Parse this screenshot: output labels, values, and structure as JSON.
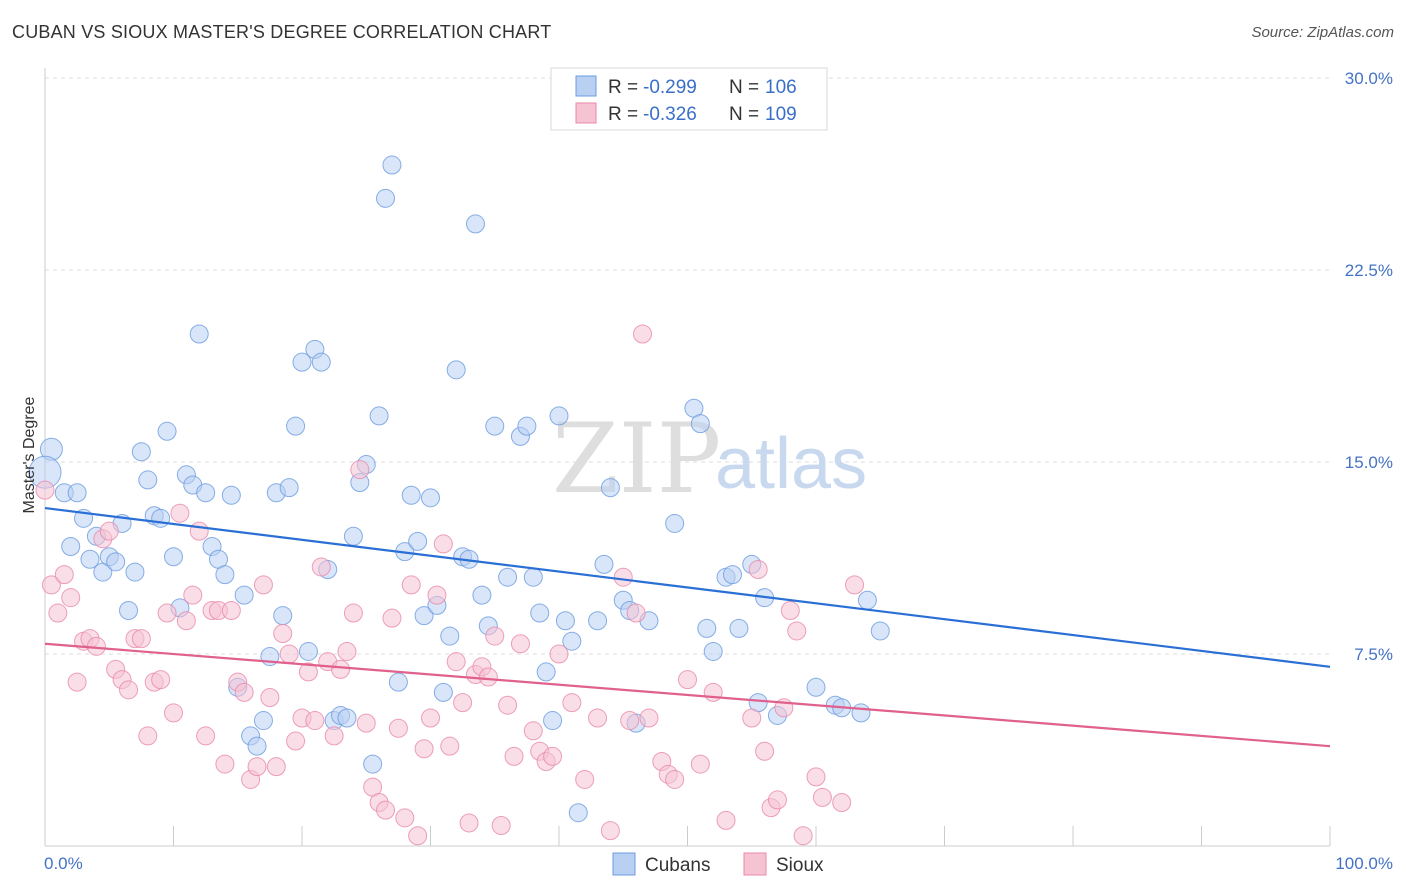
{
  "header": {
    "title": "CUBAN VS SIOUX MASTER'S DEGREE CORRELATION CHART",
    "source": "Source: ZipAtlas.com"
  },
  "watermark": {
    "zip": "ZIP",
    "atlas": "atlas"
  },
  "legend": {
    "rows": [
      {
        "r_label": "R = ",
        "r_value": "-0.299",
        "n_label": "N = ",
        "n_value": "106",
        "color": "#6a9be0",
        "fill": "#b9d0f2"
      },
      {
        "r_label": "R = ",
        "r_value": "-0.326",
        "n_label": "N = ",
        "n_value": "109",
        "color": "#e888aa",
        "fill": "#f6c3d3"
      }
    ]
  },
  "bottom_legend": [
    {
      "label": "Cubans",
      "color": "#6a9be0",
      "fill": "#b9d0f2"
    },
    {
      "label": "Sioux",
      "color": "#e888aa",
      "fill": "#f6c3d3"
    }
  ],
  "chart_data": {
    "type": "scatter",
    "title": "CUBAN VS SIOUX MASTER'S DEGREE CORRELATION CHART",
    "xlabel": "",
    "ylabel": "Master's Degree",
    "xlim": [
      0,
      100
    ],
    "ylim": [
      0,
      30
    ],
    "x_tick_labels": [
      "0.0%",
      "100.0%"
    ],
    "y_ticks": [
      7.5,
      15.0,
      22.5,
      30.0
    ],
    "y_tick_labels": [
      "7.5%",
      "15.0%",
      "22.5%",
      "30.0%"
    ],
    "grid": "horizontal-dashed",
    "legend_position": "top-center",
    "series": [
      {
        "name": "Cubans",
        "color": "#6a9be0",
        "fill": "#b9d0f2",
        "trend": {
          "x": [
            0,
            100
          ],
          "y": [
            13.2,
            7.0
          ]
        },
        "points": [
          [
            0.5,
            15.5
          ],
          [
            0,
            14.6
          ],
          [
            1.5,
            13.8
          ],
          [
            2.5,
            13.8
          ],
          [
            2,
            11.7
          ],
          [
            3,
            12.8
          ],
          [
            4,
            12.1
          ],
          [
            3.5,
            11.2
          ],
          [
            4.5,
            10.7
          ],
          [
            5,
            11.3
          ],
          [
            5.5,
            11.1
          ],
          [
            6,
            12.6
          ],
          [
            6.5,
            9.2
          ],
          [
            7,
            10.7
          ],
          [
            7.5,
            15.4
          ],
          [
            8,
            14.3
          ],
          [
            8.5,
            12.9
          ],
          [
            9,
            12.8
          ],
          [
            9.5,
            16.2
          ],
          [
            10,
            11.3
          ],
          [
            10.5,
            9.3
          ],
          [
            11,
            14.5
          ],
          [
            11.5,
            14.1
          ],
          [
            12,
            20.0
          ],
          [
            12.5,
            13.8
          ],
          [
            13,
            11.7
          ],
          [
            13.5,
            11.2
          ],
          [
            14,
            10.6
          ],
          [
            14.5,
            13.7
          ],
          [
            15,
            6.2
          ],
          [
            15.5,
            9.8
          ],
          [
            16,
            4.3
          ],
          [
            16.5,
            3.9
          ],
          [
            17,
            4.9
          ],
          [
            17.5,
            7.4
          ],
          [
            18,
            13.8
          ],
          [
            18.5,
            9.0
          ],
          [
            19,
            14.0
          ],
          [
            19.5,
            16.4
          ],
          [
            20,
            18.9
          ],
          [
            20.5,
            7.6
          ],
          [
            21,
            19.4
          ],
          [
            21.5,
            18.9
          ],
          [
            22,
            10.8
          ],
          [
            22.5,
            4.9
          ],
          [
            23,
            5.1
          ],
          [
            23.5,
            5.0
          ],
          [
            24,
            12.1
          ],
          [
            24.5,
            14.2
          ],
          [
            25,
            14.9
          ],
          [
            25.5,
            3.2
          ],
          [
            26,
            16.8
          ],
          [
            26.5,
            25.3
          ],
          [
            27,
            26.6
          ],
          [
            27.5,
            6.4
          ],
          [
            28,
            11.5
          ],
          [
            28.5,
            13.7
          ],
          [
            29,
            11.9
          ],
          [
            29.5,
            9.0
          ],
          [
            30,
            13.6
          ],
          [
            30.5,
            9.4
          ],
          [
            31,
            6.0
          ],
          [
            31.5,
            8.2
          ],
          [
            32,
            18.6
          ],
          [
            32.5,
            11.3
          ],
          [
            33,
            11.2
          ],
          [
            33.5,
            24.3
          ],
          [
            34,
            9.8
          ],
          [
            34.5,
            8.6
          ],
          [
            35,
            16.4
          ],
          [
            36,
            10.5
          ],
          [
            37,
            16.0
          ],
          [
            37.5,
            16.4
          ],
          [
            38,
            10.5
          ],
          [
            38.5,
            9.1
          ],
          [
            39,
            6.8
          ],
          [
            39.5,
            4.9
          ],
          [
            40,
            16.8
          ],
          [
            40.5,
            8.8
          ],
          [
            41,
            8.0
          ],
          [
            41.5,
            1.3
          ],
          [
            43,
            8.8
          ],
          [
            43.5,
            11.0
          ],
          [
            44,
            14.0
          ],
          [
            45,
            9.6
          ],
          [
            45.5,
            9.2
          ],
          [
            46,
            4.8
          ],
          [
            47,
            8.8
          ],
          [
            49,
            12.6
          ],
          [
            50.5,
            17.1
          ],
          [
            51,
            16.5
          ],
          [
            51.5,
            8.5
          ],
          [
            52,
            7.6
          ],
          [
            53,
            10.5
          ],
          [
            53.5,
            10.6
          ],
          [
            54,
            8.5
          ],
          [
            55,
            11.0
          ],
          [
            55.5,
            5.6
          ],
          [
            56,
            9.7
          ],
          [
            57,
            5.1
          ],
          [
            60,
            6.2
          ],
          [
            61.5,
            5.5
          ],
          [
            62,
            5.4
          ],
          [
            63.5,
            5.2
          ],
          [
            64,
            9.6
          ],
          [
            65,
            8.4
          ]
        ]
      },
      {
        "name": "Sioux",
        "color": "#e888aa",
        "fill": "#f6c3d3",
        "trend": {
          "x": [
            0,
            100
          ],
          "y": [
            7.9,
            3.9
          ]
        },
        "points": [
          [
            0,
            13.9
          ],
          [
            0.5,
            10.2
          ],
          [
            1,
            9.1
          ],
          [
            1.5,
            10.6
          ],
          [
            2,
            9.7
          ],
          [
            2.5,
            6.4
          ],
          [
            3,
            8.0
          ],
          [
            3.5,
            8.1
          ],
          [
            4,
            7.8
          ],
          [
            4.5,
            12.0
          ],
          [
            5,
            12.3
          ],
          [
            5.5,
            6.9
          ],
          [
            6,
            6.5
          ],
          [
            6.5,
            6.1
          ],
          [
            7,
            8.1
          ],
          [
            7.5,
            8.1
          ],
          [
            8,
            4.3
          ],
          [
            8.5,
            6.4
          ],
          [
            9,
            6.5
          ],
          [
            9.5,
            9.1
          ],
          [
            10,
            5.2
          ],
          [
            10.5,
            13.0
          ],
          [
            11,
            8.8
          ],
          [
            11.5,
            9.8
          ],
          [
            12,
            12.3
          ],
          [
            12.5,
            4.3
          ],
          [
            13,
            9.2
          ],
          [
            13.5,
            9.2
          ],
          [
            14,
            3.2
          ],
          [
            14.5,
            9.2
          ],
          [
            15,
            6.4
          ],
          [
            15.5,
            6.0
          ],
          [
            16,
            2.6
          ],
          [
            16.5,
            3.1
          ],
          [
            17,
            10.2
          ],
          [
            17.5,
            5.8
          ],
          [
            18,
            3.1
          ],
          [
            18.5,
            8.3
          ],
          [
            19,
            7.5
          ],
          [
            19.5,
            4.1
          ],
          [
            20,
            5.0
          ],
          [
            20.5,
            6.8
          ],
          [
            21,
            4.9
          ],
          [
            21.5,
            10.9
          ],
          [
            22,
            7.2
          ],
          [
            22.5,
            4.3
          ],
          [
            23,
            6.9
          ],
          [
            23.5,
            7.6
          ],
          [
            24,
            9.1
          ],
          [
            24.5,
            14.7
          ],
          [
            25,
            4.8
          ],
          [
            25.5,
            2.3
          ],
          [
            26,
            1.7
          ],
          [
            26.5,
            1.4
          ],
          [
            27,
            8.9
          ],
          [
            27.5,
            4.6
          ],
          [
            28,
            1.1
          ],
          [
            28.5,
            10.2
          ],
          [
            29,
            0.4
          ],
          [
            29.5,
            3.8
          ],
          [
            30,
            5.0
          ],
          [
            30.5,
            9.8
          ],
          [
            31,
            11.8
          ],
          [
            31.5,
            3.9
          ],
          [
            32,
            7.2
          ],
          [
            32.5,
            5.6
          ],
          [
            33,
            0.9
          ],
          [
            33.5,
            6.7
          ],
          [
            34,
            7.0
          ],
          [
            34.5,
            6.6
          ],
          [
            35,
            8.2
          ],
          [
            35.5,
            0.8
          ],
          [
            36,
            5.5
          ],
          [
            36.5,
            3.5
          ],
          [
            37,
            7.9
          ],
          [
            38,
            4.5
          ],
          [
            38.5,
            3.7
          ],
          [
            39,
            3.3
          ],
          [
            39.5,
            3.5
          ],
          [
            40,
            7.5
          ],
          [
            41,
            5.6
          ],
          [
            42,
            2.6
          ],
          [
            43,
            5.0
          ],
          [
            44,
            0.6
          ],
          [
            45,
            10.5
          ],
          [
            45.5,
            4.9
          ],
          [
            46,
            9.1
          ],
          [
            46.5,
            20.0
          ],
          [
            47,
            5.0
          ],
          [
            48,
            3.3
          ],
          [
            48.5,
            2.8
          ],
          [
            49,
            2.6
          ],
          [
            50,
            6.5
          ],
          [
            51,
            3.2
          ],
          [
            52,
            6.0
          ],
          [
            53,
            1.0
          ],
          [
            55,
            5.0
          ],
          [
            55.5,
            10.8
          ],
          [
            56,
            3.7
          ],
          [
            56.5,
            1.5
          ],
          [
            57,
            1.8
          ],
          [
            57.5,
            5.4
          ],
          [
            58,
            9.2
          ],
          [
            58.5,
            8.4
          ],
          [
            59,
            0.4
          ],
          [
            60,
            2.7
          ],
          [
            60.5,
            1.9
          ],
          [
            62,
            1.7
          ],
          [
            63,
            10.2
          ]
        ]
      }
    ]
  }
}
